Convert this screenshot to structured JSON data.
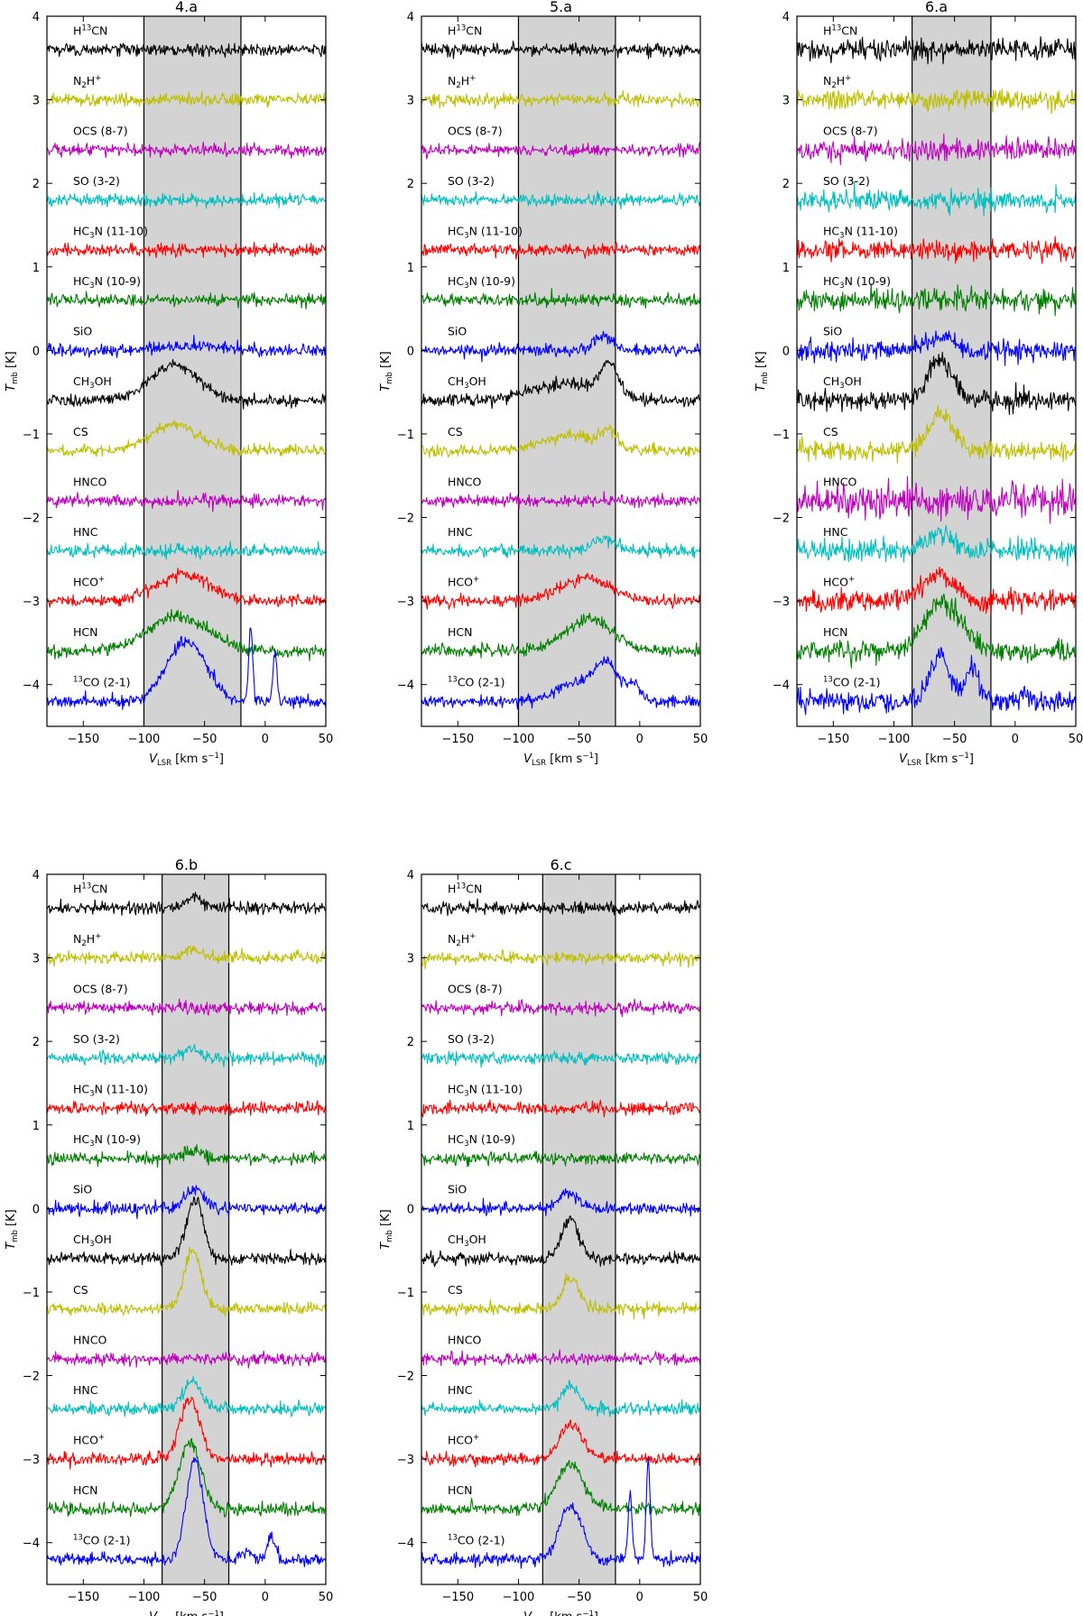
{
  "figure": {
    "ylabel_main": "T",
    "ylabel_sub": "mb",
    "ylabel_unit": " [K]",
    "xlabel_main": "V",
    "xlabel_sub": "LSR",
    "xlabel_unit_pre": " [km s",
    "xlabel_unit_sup": "−1",
    "xlabel_unit_post": "]"
  },
  "chart_data": {
    "type": "line",
    "description": "Stacked molecular line spectra (offset vertically) for five regions",
    "xlim": [
      -180,
      50
    ],
    "ylim": [
      -4.5,
      4
    ],
    "xticks": [
      -150,
      -100,
      -50,
      0,
      50
    ],
    "yticks": [
      -4,
      -3,
      -2,
      -1,
      0,
      1,
      2,
      3,
      4
    ],
    "colors": {
      "black": "#000000",
      "olive": "#bfbf00",
      "magenta": "#bf00bf",
      "cyan": "#00bfbf",
      "red": "#ff0000",
      "green": "#008000",
      "blue": "#0000ff",
      "shade": "#d3d3d3"
    },
    "lines": [
      {
        "id": "h13cn",
        "label": "H13CN",
        "label_base": "H",
        "label_sup": "13",
        "label_rest": "CN",
        "offset": 3.6,
        "color": "#000000"
      },
      {
        "id": "n2hp",
        "label": "N2H+",
        "label_base": "N",
        "label_sub": "2",
        "label_rest": "H",
        "label_sup2": "+",
        "offset": 3.0,
        "color": "#bfbf00"
      },
      {
        "id": "ocs",
        "label": "OCS (8-7)",
        "offset": 2.4,
        "color": "#bf00bf"
      },
      {
        "id": "so",
        "label": "SO (3-2)",
        "offset": 1.8,
        "color": "#00bfbf"
      },
      {
        "id": "hc3n1110",
        "label": "HC3N (11-10)",
        "label_base": "HC",
        "label_sub": "3",
        "label_rest": "N (11-10)",
        "offset": 1.2,
        "color": "#ff0000"
      },
      {
        "id": "hc3n109",
        "label": "HC3N (10-9)",
        "label_base": "HC",
        "label_sub": "3",
        "label_rest": "N (10-9)",
        "offset": 0.6,
        "color": "#008000"
      },
      {
        "id": "sio",
        "label": "SiO",
        "offset": 0.0,
        "color": "#0000ff"
      },
      {
        "id": "ch3oh",
        "label": "CH3OH",
        "label_base": "CH",
        "label_sub": "3",
        "label_rest": "OH",
        "offset": -0.6,
        "color": "#000000"
      },
      {
        "id": "cs",
        "label": "CS",
        "offset": -1.2,
        "color": "#bfbf00"
      },
      {
        "id": "hnco",
        "label": "HNCO",
        "offset": -1.8,
        "color": "#bf00bf"
      },
      {
        "id": "hnc",
        "label": "HNC",
        "offset": -2.4,
        "color": "#00bfbf"
      },
      {
        "id": "hcop",
        "label": "HCO+",
        "label_base": "HCO",
        "label_sup2": "+",
        "offset": -3.0,
        "color": "#ff0000"
      },
      {
        "id": "hcn",
        "label": "HCN",
        "offset": -3.6,
        "color": "#008000"
      },
      {
        "id": "co13",
        "label": "13CO (2-1)",
        "label_pre_sup": "13",
        "label_base": "CO (2-1)",
        "offset": -4.2,
        "color": "#0000ff"
      }
    ],
    "panels": [
      {
        "title": "4.a",
        "shade": [
          -100,
          -20
        ],
        "noise": 0.035,
        "features": {
          "ch3oh": [
            {
              "c": -75,
              "w": 20,
              "a": 0.42
            }
          ],
          "cs": [
            {
              "c": -75,
              "w": 20,
              "a": 0.32
            }
          ],
          "hcop": [
            {
              "c": -68,
              "w": 22,
              "a": 0.32
            }
          ],
          "hcn": [
            {
              "c": -72,
              "w": 25,
              "a": 0.42
            }
          ],
          "co13": [
            {
              "c": -65,
              "w": 16,
              "a": 0.72
            },
            {
              "c": -12,
              "w": 1.6,
              "a": 0.88
            },
            {
              "c": 8,
              "w": 1.6,
              "a": 0.62
            }
          ],
          "sio": [
            {
              "c": -60,
              "w": 25,
              "a": 0.05
            }
          ]
        }
      },
      {
        "title": "5.a",
        "shade": [
          -100,
          -20
        ],
        "noise": 0.035,
        "features": {
          "ch3oh": [
            {
              "c": -60,
              "w": 30,
              "a": 0.2
            },
            {
              "c": -25,
              "w": 7,
              "a": 0.35
            }
          ],
          "cs": [
            {
              "c": -55,
              "w": 25,
              "a": 0.18
            },
            {
              "c": -25,
              "w": 6,
              "a": 0.18
            }
          ],
          "sio": [
            {
              "c": -30,
              "w": 8,
              "a": 0.16
            }
          ],
          "hnc": [
            {
              "c": -30,
              "w": 10,
              "a": 0.14
            }
          ],
          "hcop": [
            {
              "c": -45,
              "w": 20,
              "a": 0.28
            }
          ],
          "hcn": [
            {
              "c": -42,
              "w": 20,
              "a": 0.38
            }
          ],
          "co13": [
            {
              "c": -55,
              "w": 15,
              "a": 0.22
            },
            {
              "c": -28,
              "w": 10,
              "a": 0.45
            },
            {
              "c": -5,
              "w": 6,
              "a": 0.2
            }
          ]
        }
      },
      {
        "title": "6.a",
        "shade": [
          -85,
          -20
        ],
        "noise": 0.06,
        "features": {
          "ch3oh": [
            {
              "c": -62,
              "w": 10,
              "a": 0.5
            }
          ],
          "cs": [
            {
              "c": -62,
              "w": 10,
              "a": 0.45
            }
          ],
          "sio": [
            {
              "c": -62,
              "w": 10,
              "a": 0.15
            }
          ],
          "hnc": [
            {
              "c": -62,
              "w": 10,
              "a": 0.2
            }
          ],
          "hcop": [
            {
              "c": -62,
              "w": 12,
              "a": 0.35
            }
          ],
          "hcn": [
            {
              "c": -60,
              "w": 15,
              "a": 0.6
            }
          ],
          "co13": [
            {
              "c": -62,
              "w": 8,
              "a": 0.55
            },
            {
              "c": -35,
              "w": 6,
              "a": 0.4
            },
            {
              "c": 8,
              "w": 3,
              "a": 0.1
            }
          ]
        }
      },
      {
        "title": "6.b",
        "shade": [
          -85,
          -30
        ],
        "noise": 0.035,
        "features": {
          "ch3oh": [
            {
              "c": -58,
              "w": 7,
              "a": 0.7
            }
          ],
          "cs": [
            {
              "c": -60,
              "w": 7,
              "a": 0.7
            }
          ],
          "sio": [
            {
              "c": -58,
              "w": 7,
              "a": 0.25
            }
          ],
          "hnc": [
            {
              "c": -60,
              "w": 8,
              "a": 0.32
            }
          ],
          "hcop": [
            {
              "c": -62,
              "w": 8,
              "a": 0.72
            }
          ],
          "hcn": [
            {
              "c": -62,
              "w": 9,
              "a": 0.82
            }
          ],
          "co13": [
            {
              "c": -58,
              "w": 7,
              "a": 1.2
            },
            {
              "c": 5,
              "w": 3,
              "a": 0.3
            },
            {
              "c": -15,
              "w": 4,
              "a": 0.1
            }
          ],
          "h13cn": [
            {
              "c": -58,
              "w": 7,
              "a": 0.12
            }
          ],
          "n2hp": [
            {
              "c": -60,
              "w": 7,
              "a": 0.1
            }
          ],
          "so": [
            {
              "c": -60,
              "w": 7,
              "a": 0.12
            }
          ],
          "hc3n109": [
            {
              "c": -60,
              "w": 7,
              "a": 0.1
            }
          ]
        }
      },
      {
        "title": "6.c",
        "shade": [
          -80,
          -20
        ],
        "noise": 0.035,
        "features": {
          "ch3oh": [
            {
              "c": -57,
              "w": 7,
              "a": 0.48
            }
          ],
          "cs": [
            {
              "c": -57,
              "w": 7,
              "a": 0.35
            }
          ],
          "sio": [
            {
              "c": -58,
              "w": 8,
              "a": 0.18
            }
          ],
          "hnc": [
            {
              "c": -58,
              "w": 7,
              "a": 0.28
            }
          ],
          "hcop": [
            {
              "c": -57,
              "w": 9,
              "a": 0.42
            }
          ],
          "hcn": [
            {
              "c": -57,
              "w": 11,
              "a": 0.55
            }
          ],
          "co13": [
            {
              "c": -57,
              "w": 9,
              "a": 0.65
            },
            {
              "c": -8,
              "w": 1.6,
              "a": 0.8
            },
            {
              "c": 7,
              "w": 1.6,
              "a": 1.2
            }
          ]
        }
      }
    ]
  }
}
